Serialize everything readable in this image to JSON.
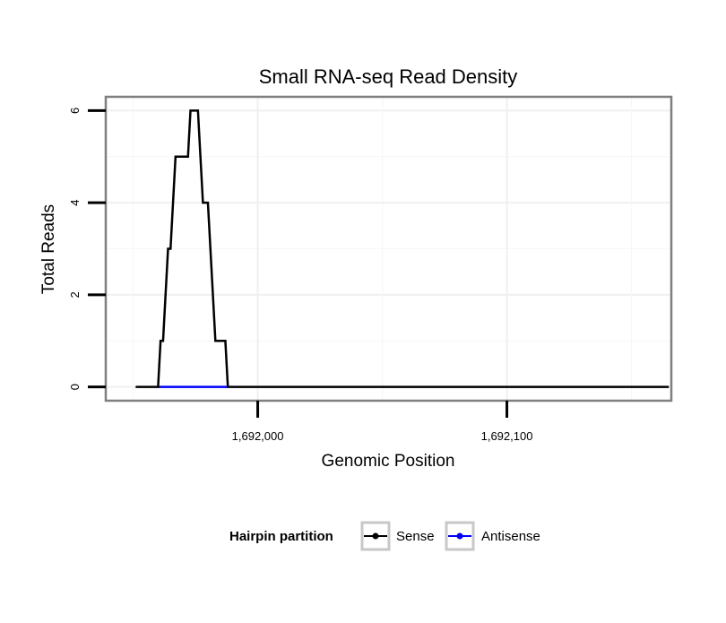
{
  "chart_data": {
    "type": "line",
    "title": "Small RNA-seq Read Density",
    "xlabel": "Genomic Position",
    "ylabel": "Total Reads",
    "xlim": [
      1691939,
      1692166
    ],
    "ylim": [
      -0.3,
      6.3
    ],
    "x_ticks": [
      {
        "value": 1692000,
        "label": "1,692,000"
      },
      {
        "value": 1692100,
        "label": "1,692,100"
      }
    ],
    "y_ticks": [
      {
        "value": 0,
        "label": "0"
      },
      {
        "value": 2,
        "label": "2"
      },
      {
        "value": 4,
        "label": "4"
      },
      {
        "value": 6,
        "label": "6"
      }
    ],
    "grid": true,
    "legend": {
      "title": "Hairpin partition",
      "position": "bottom",
      "entries": [
        "Sense",
        "Antisense"
      ]
    },
    "series": [
      {
        "name": "Sense",
        "color": "#000000",
        "step": true,
        "x": [
          1691951,
          1691960,
          1691961,
          1691962,
          1691963,
          1691964,
          1691965,
          1691966,
          1691967,
          1691968,
          1691969,
          1691970,
          1691971,
          1691972,
          1691973,
          1691974,
          1691975,
          1691976,
          1691977,
          1691978,
          1691979,
          1691980,
          1691981,
          1691982,
          1691983,
          1691984,
          1691985,
          1691986,
          1691987,
          1691988,
          1691989,
          1691990,
          1692165
        ],
        "y": [
          0,
          0,
          1,
          1,
          2,
          3,
          3,
          4,
          5,
          5,
          5,
          5,
          5,
          5,
          6,
          6,
          6,
          6,
          5,
          4,
          4,
          4,
          3,
          2,
          1,
          1,
          1,
          1,
          1,
          0,
          0,
          0,
          0
        ]
      },
      {
        "name": "Antisense",
        "color": "#0000ff",
        "step": true,
        "x": [
          1691960,
          1691988
        ],
        "y": [
          0,
          0
        ]
      }
    ]
  }
}
